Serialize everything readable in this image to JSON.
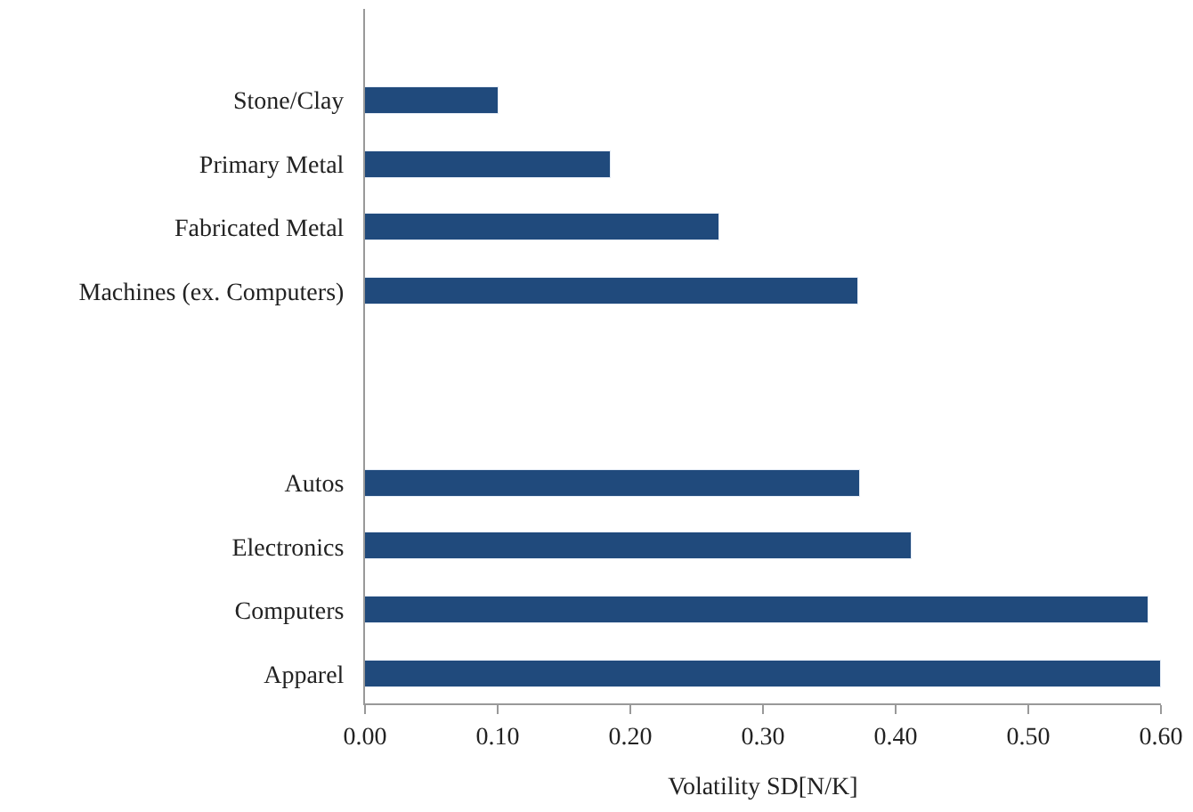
{
  "chart_data": {
    "type": "bar",
    "orientation": "horizontal",
    "xlabel": "Volatility SD[N/K]",
    "categories": [
      "Stone/Clay",
      "Primary Metal",
      "Fabricated Metal",
      "Machines (ex. Computers)",
      null,
      null,
      "Autos",
      "Electronics",
      "Computers",
      "Apparel"
    ],
    "series": [
      {
        "color": "#204a7c",
        "values": [
          0.1,
          0.185,
          0.267,
          0.372,
          null,
          null,
          0.373,
          0.412,
          0.59,
          0.6
        ]
      }
    ],
    "xlim": [
      0,
      0.6
    ],
    "xticks": [
      {
        "value": 0,
        "label": "0.00"
      },
      {
        "value": 0.1,
        "label": "0.10"
      },
      {
        "value": 0.2,
        "label": "0.20"
      },
      {
        "value": 0.3,
        "label": "0.30"
      },
      {
        "value": 0.4,
        "label": "0.40"
      },
      {
        "value": 0.5,
        "label": "0.50"
      },
      {
        "value": 0.6,
        "label": "0.60"
      }
    ]
  }
}
